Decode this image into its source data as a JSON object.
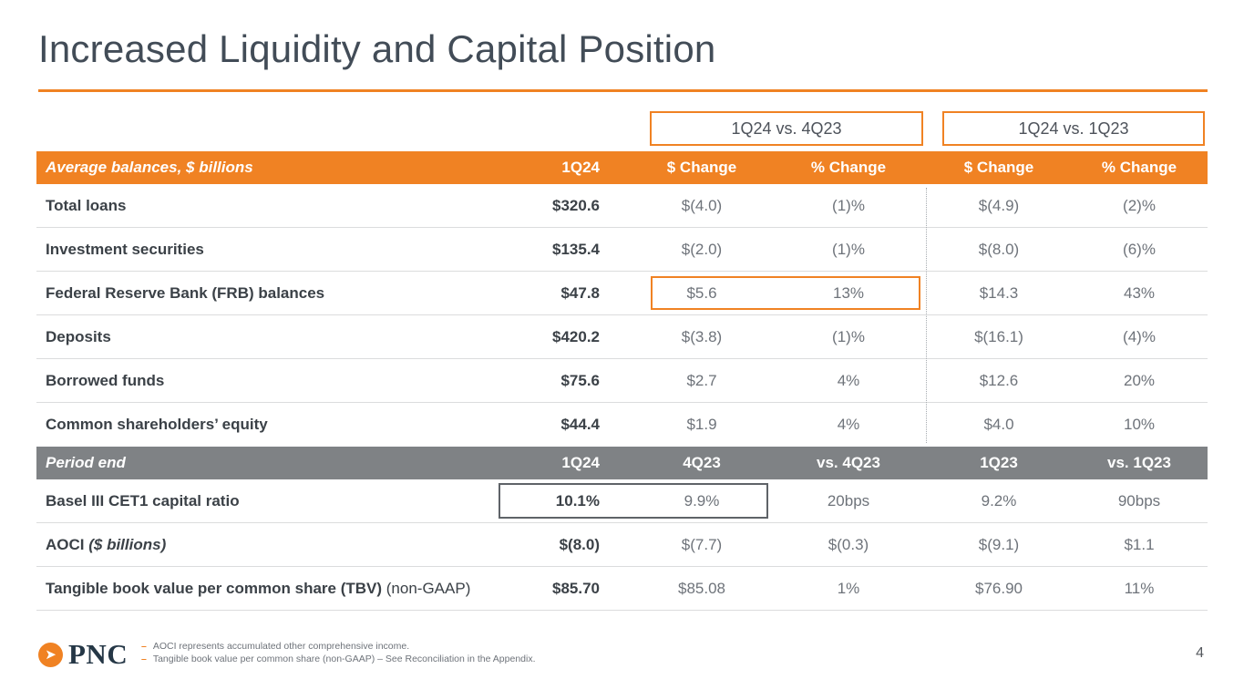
{
  "slide": {
    "title": "Increased Liquidity and Capital Position",
    "page_number": "4"
  },
  "colors": {
    "accent_orange": "#F08223",
    "gray_band": "#7F8285",
    "title_text": "#424C57",
    "label_text": "#3B4147",
    "value_text": "#6E737A"
  },
  "comparison_boxes": {
    "box1": "1Q24 vs. 4Q23",
    "box2": "1Q24 vs. 1Q23"
  },
  "balances_table": {
    "header_label": "Average balances, $ billions",
    "columns": [
      "1Q24",
      "$ Change",
      "% Change",
      "$ Change",
      "% Change"
    ],
    "rows": [
      {
        "label": "Total loans",
        "v1": "$320.6",
        "v2": "$(4.0)",
        "v3": "(1)%",
        "v4": "$(4.9)",
        "v5": "(2)%"
      },
      {
        "label": "Investment securities",
        "v1": "$135.4",
        "v2": "$(2.0)",
        "v3": "(1)%",
        "v4": "$(8.0)",
        "v5": "(6)%"
      },
      {
        "label": "Federal Reserve Bank (FRB) balances",
        "v1": "$47.8",
        "v2": "$5.6",
        "v3": "13%",
        "v4": "$14.3",
        "v5": "43%"
      },
      {
        "label": "Deposits",
        "v1": "$420.2",
        "v2": "$(3.8)",
        "v3": "(1)%",
        "v4": "$(16.1)",
        "v5": "(4)%"
      },
      {
        "label": "Borrowed funds",
        "v1": "$75.6",
        "v2": "$2.7",
        "v3": "4%",
        "v4": "$12.6",
        "v5": "20%"
      },
      {
        "label": "Common shareholders’ equity",
        "v1": "$44.4",
        "v2": "$1.9",
        "v3": "4%",
        "v4": "$4.0",
        "v5": "10%"
      }
    ]
  },
  "period_table": {
    "header_label": "Period end",
    "columns": [
      "1Q24",
      "4Q23",
      "vs. 4Q23",
      "1Q23",
      "vs. 1Q23"
    ],
    "rows": [
      {
        "label": "Basel III CET1 capital ratio",
        "suffix": "",
        "v1": "10.1%",
        "v2": "9.9%",
        "v3": "20bps",
        "v4": "9.2%",
        "v5": "90bps"
      },
      {
        "label": "AOCI",
        "suffix": "($ billions)",
        "v1": "$(8.0)",
        "v2": "$(7.7)",
        "v3": "$(0.3)",
        "v4": "$(9.1)",
        "v5": "$1.1"
      },
      {
        "label": "Tangible book value per common share (TBV)",
        "suffix": "(non-GAAP)",
        "v1": "$85.70",
        "v2": "$85.08",
        "v3": "1%",
        "v4": "$76.90",
        "v5": "11%"
      }
    ]
  },
  "footer": {
    "logo": "PNC",
    "logo_mark": "➤",
    "footnotes": [
      "AOCI represents accumulated other comprehensive income.",
      "Tangible book value per common share (non-GAAP) – See Reconciliation in the Appendix."
    ]
  }
}
